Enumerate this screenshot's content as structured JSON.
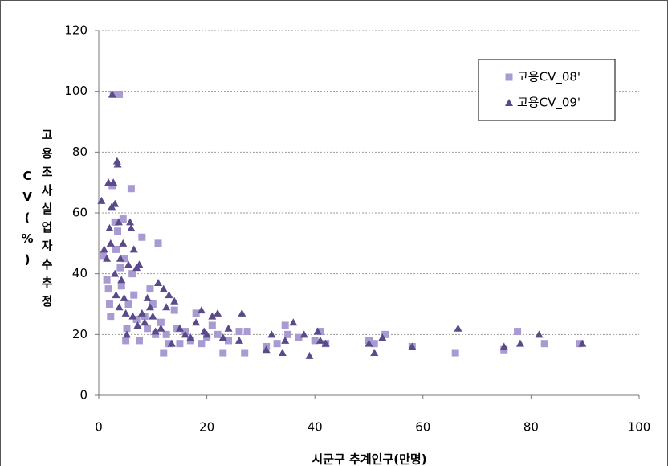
{
  "chart_data": {
    "type": "scatter",
    "x_label": "시군구 추계인구(만명)",
    "y_label": "고용조사실업자수추정CV(%)",
    "xlim": [
      0,
      100
    ],
    "xticks": [
      0,
      20,
      40,
      60,
      80,
      100
    ],
    "ylim": [
      0,
      120
    ],
    "yticks": [
      0,
      20,
      40,
      60,
      80,
      100,
      120
    ],
    "grid": true,
    "legend_position": "upper right",
    "series": [
      {
        "name": "고용CV_08'",
        "color": "#a99bd1",
        "marker": "square",
        "x": [
          0.8,
          1.5,
          1.8,
          2,
          2.2,
          2.5,
          2.7,
          3,
          3.2,
          3.5,
          3.8,
          4,
          4.2,
          4.5,
          4.8,
          5,
          5.2,
          5.5,
          6,
          6.2,
          6.5,
          7,
          7.5,
          8,
          8.5,
          9,
          9.5,
          10,
          10.5,
          11,
          11.5,
          12,
          12.5,
          13,
          14,
          14.5,
          15,
          16,
          17,
          18,
          19,
          20,
          21,
          22,
          23,
          24,
          26,
          27,
          27.5,
          31,
          33,
          34.5,
          35,
          37,
          40,
          41,
          42,
          50,
          51,
          53,
          58,
          66,
          75,
          77.5,
          82.5,
          89
        ],
        "values": [
          46,
          38,
          35,
          30,
          26,
          69,
          99,
          57,
          48,
          54,
          99,
          42,
          36,
          58,
          45,
          18,
          22,
          30,
          68,
          40,
          33,
          25,
          18,
          52,
          26,
          22,
          35,
          30,
          20,
          50,
          24,
          14,
          20,
          17,
          28,
          22,
          17,
          21,
          18,
          27,
          17,
          19,
          23,
          20,
          14,
          18,
          21,
          14,
          21,
          16,
          17,
          23,
          20,
          19,
          18,
          21,
          17,
          18,
          17,
          20,
          16,
          14,
          15,
          21,
          17,
          17
        ]
      },
      {
        "name": "고용CV_09'",
        "color": "#5b4a8a",
        "marker": "triangle",
        "x": [
          0.5,
          1,
          1.5,
          1.8,
          2,
          2.2,
          2.4,
          2.5,
          2.7,
          3,
          3,
          3.2,
          3.4,
          3.5,
          3.7,
          3.8,
          4,
          4.2,
          4.5,
          4.7,
          5,
          5.2,
          5.5,
          5.8,
          6,
          6.3,
          6.5,
          7,
          7.2,
          7.5,
          8,
          8.5,
          9,
          9.5,
          10,
          10.5,
          11,
          11.5,
          12,
          12.5,
          13,
          13.5,
          14,
          15,
          16,
          17,
          18,
          19,
          19.5,
          20,
          21,
          22,
          23,
          24,
          26,
          26.5,
          31,
          32,
          34,
          34.5,
          36,
          38,
          39,
          40.5,
          41,
          42,
          50,
          51,
          52.5,
          58,
          66.5,
          75,
          78,
          81.5,
          89.5
        ],
        "values": [
          64,
          48,
          45,
          70,
          55,
          50,
          62,
          99,
          70,
          63,
          40,
          33,
          77,
          76,
          57,
          29,
          45,
          38,
          50,
          32,
          27,
          20,
          43,
          57,
          55,
          26,
          48,
          42,
          23,
          43,
          27,
          24,
          32,
          29,
          26,
          21,
          37,
          22,
          35,
          29,
          33,
          17,
          31,
          22,
          20,
          19,
          24,
          28,
          21,
          20,
          26,
          27,
          19,
          22,
          18,
          27,
          15,
          20,
          14,
          18,
          24,
          20,
          13,
          21,
          18,
          17,
          17,
          14,
          19,
          16,
          22,
          16,
          17,
          20,
          17
        ]
      }
    ]
  }
}
